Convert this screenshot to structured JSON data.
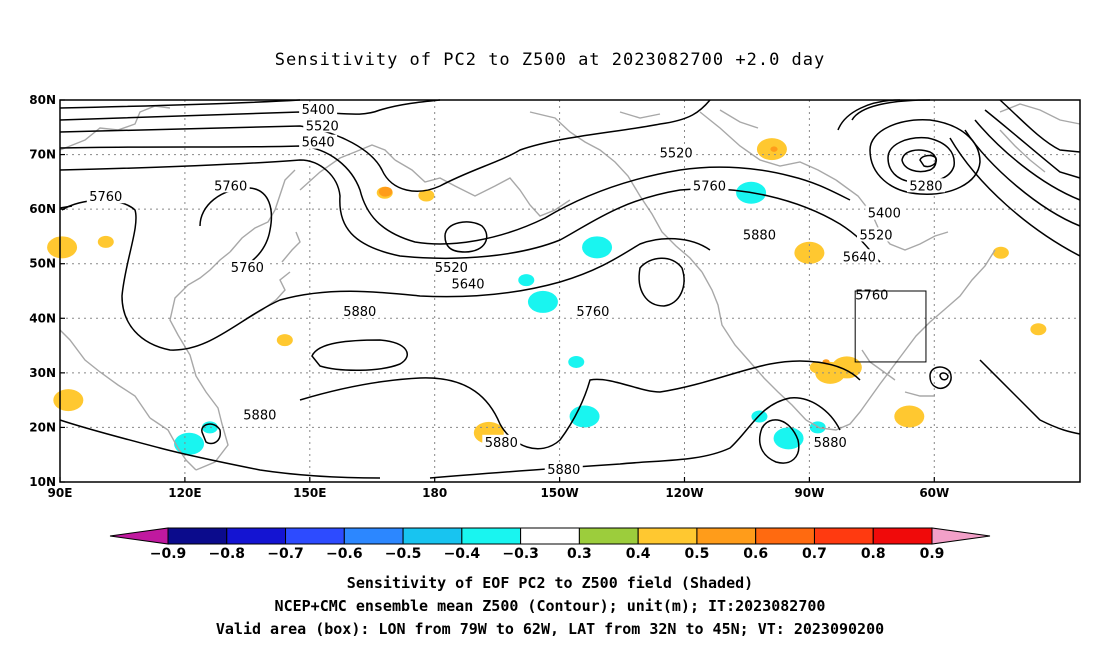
{
  "title": "Sensitivity of PC2 to Z500 at 2023082700 +2.0 day",
  "lat_ticks": [
    "80N",
    "70N",
    "60N",
    "50N",
    "40N",
    "30N",
    "20N",
    "10N"
  ],
  "lon_ticks": [
    "90E",
    "120E",
    "150E",
    "180",
    "150W",
    "120W",
    "90W",
    "60W"
  ],
  "contour_labels": [
    {
      "text": "5400",
      "lon": 152,
      "lat": 78
    },
    {
      "text": "5520",
      "lon": 153,
      "lat": 75
    },
    {
      "text": "5640",
      "lon": 152,
      "lat": 72
    },
    {
      "text": "5760",
      "lon": 101,
      "lat": 62
    },
    {
      "text": "5760",
      "lon": 131,
      "lat": 64
    },
    {
      "text": "5760",
      "lon": 135,
      "lat": 49
    },
    {
      "text": "5520",
      "lon": -122,
      "lat": 70
    },
    {
      "text": "5760",
      "lon": -114,
      "lat": 64
    },
    {
      "text": "5880",
      "lon": -102,
      "lat": 55
    },
    {
      "text": "5280",
      "lon": -62,
      "lat": 64
    },
    {
      "text": "5400",
      "lon": -72,
      "lat": 59
    },
    {
      "text": "5520",
      "lon": -74,
      "lat": 55
    },
    {
      "text": "5640",
      "lon": -78,
      "lat": 51
    },
    {
      "text": "5760",
      "lon": -75,
      "lat": 44
    },
    {
      "text": "5520",
      "lon": -176,
      "lat": 49
    },
    {
      "text": "5640",
      "lon": -172,
      "lat": 46
    },
    {
      "text": "5760",
      "lon": -142,
      "lat": 41
    },
    {
      "text": "5880",
      "lon": 162,
      "lat": 41
    },
    {
      "text": "5880",
      "lon": 138,
      "lat": 22
    },
    {
      "text": "5880",
      "lon": -164,
      "lat": 17
    },
    {
      "text": "5880",
      "lon": -149,
      "lat": 12
    },
    {
      "text": "5880",
      "lon": -85,
      "lat": 17
    }
  ],
  "colorbar": {
    "labels": [
      "-0.9",
      "-0.8",
      "-0.7",
      "-0.6",
      "-0.5",
      "-0.4",
      "-0.3",
      "0.3",
      "0.4",
      "0.5",
      "0.6",
      "0.7",
      "0.8",
      "0.9"
    ],
    "colors": [
      "#0b0b8c",
      "#1414d2",
      "#2d4bff",
      "#2c87ff",
      "#18c4f0",
      "#19f5f0",
      "#ffffff",
      "#9ccd3c",
      "#ffc830",
      "#ff9c1a",
      "#ff6a10",
      "#ff3a10",
      "#f00a0a"
    ],
    "low_color": "#c0199f",
    "high_color": "#f2a0c8"
  },
  "captions": {
    "line1": "Sensitivity of EOF PC2 to Z500 field (Shaded)",
    "line2": "NCEP+CMC ensemble mean Z500 (Contour); unit(m); IT:2023082700",
    "line3": "Valid area (box): LON from 79W to 62W, LAT from 32N to 45N; VT: 2023090200"
  },
  "valid_box": {
    "lon_min": -79,
    "lon_max": -62,
    "lat_min": 32,
    "lat_max": 45
  },
  "shaded_areas": [
    {
      "lon": 101,
      "lat": 54,
      "value": 0.4
    },
    {
      "lon": 90.5,
      "lat": 53,
      "value": 0.4
    },
    {
      "lon": 168,
      "lat": 63,
      "value": 0.4
    },
    {
      "lon": 168.2,
      "lat": 63.2,
      "value": 0.5
    },
    {
      "lon": 178,
      "lat": 62.5,
      "value": 0.4
    },
    {
      "lon": -99,
      "lat": 71,
      "value": 0.4
    },
    {
      "lon": -98.5,
      "lat": 71,
      "value": 0.5
    },
    {
      "lon": -104,
      "lat": 63,
      "value": -0.4
    },
    {
      "lon": -73,
      "lat": 63,
      "value": -0.3
    },
    {
      "lon": -141,
      "lat": 53,
      "value": -0.4
    },
    {
      "lon": -158,
      "lat": 47,
      "value": -0.4
    },
    {
      "lon": -154,
      "lat": 43,
      "value": -0.4
    },
    {
      "lon": -146,
      "lat": 32,
      "value": -0.4
    },
    {
      "lon": -144,
      "lat": 22,
      "value": -0.4
    },
    {
      "lon": -102,
      "lat": 22,
      "value": -0.4
    },
    {
      "lon": -95,
      "lat": 18,
      "value": -0.4
    },
    {
      "lon": -88,
      "lat": 31,
      "value": 0.4
    },
    {
      "lon": -85,
      "lat": 30,
      "value": 0.4
    },
    {
      "lon": -86,
      "lat": 32,
      "value": 0.5
    },
    {
      "lon": -81,
      "lat": 31,
      "value": 0.4
    },
    {
      "lon": -88,
      "lat": 20,
      "value": -0.4
    },
    {
      "lon": -90,
      "lat": 52,
      "value": 0.4
    },
    {
      "lon": -44,
      "lat": 52,
      "value": 0.4
    },
    {
      "lon": -66,
      "lat": 22,
      "value": 0.4
    },
    {
      "lon": -35,
      "lat": 38,
      "value": 0.4
    },
    {
      "lon": -167,
      "lat": 19,
      "value": 0.4
    },
    {
      "lon": 126,
      "lat": 20,
      "value": -0.4
    },
    {
      "lon": 121,
      "lat": 17,
      "value": -0.4
    },
    {
      "lon": 144,
      "lat": 36,
      "value": 0.4
    },
    {
      "lon": 92,
      "lat": 25,
      "value": 0.4
    }
  ]
}
